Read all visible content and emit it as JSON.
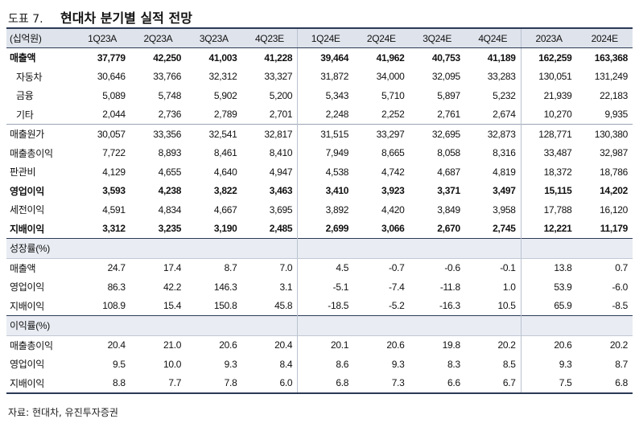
{
  "title": {
    "figure_no": "도표 7.",
    "text": "현대차 분기별 실적 전망"
  },
  "header": [
    "(십억원)",
    "1Q23A",
    "2Q23A",
    "3Q23A",
    "4Q23E",
    "1Q24E",
    "2Q24E",
    "3Q24E",
    "4Q24E",
    "2023A",
    "2024E"
  ],
  "rows": [
    [
      "매출액",
      "37,779",
      "42,250",
      "41,003",
      "41,228",
      "39,464",
      "41,962",
      "40,753",
      "41,189",
      "162,259",
      "163,368"
    ],
    [
      "자동차",
      "30,646",
      "33,766",
      "32,312",
      "33,327",
      "31,872",
      "34,000",
      "32,095",
      "33,283",
      "130,051",
      "131,249"
    ],
    [
      "금융",
      "5,089",
      "5,748",
      "5,902",
      "5,200",
      "5,343",
      "5,710",
      "5,897",
      "5,232",
      "21,939",
      "22,183"
    ],
    [
      "기타",
      "2,044",
      "2,736",
      "2,789",
      "2,701",
      "2,248",
      "2,252",
      "2,761",
      "2,674",
      "10,270",
      "9,935"
    ],
    [
      "매출원가",
      "30,057",
      "33,356",
      "32,541",
      "32,817",
      "31,515",
      "33,297",
      "32,695",
      "32,873",
      "128,771",
      "130,380"
    ],
    [
      "매출총이익",
      "7,722",
      "8,893",
      "8,461",
      "8,410",
      "7,949",
      "8,665",
      "8,058",
      "8,316",
      "33,487",
      "32,987"
    ],
    [
      "판관비",
      "4,129",
      "4,655",
      "4,640",
      "4,947",
      "4,538",
      "4,742",
      "4,687",
      "4,819",
      "18,372",
      "18,786"
    ],
    [
      "영업이익",
      "3,593",
      "4,238",
      "3,822",
      "3,463",
      "3,410",
      "3,923",
      "3,371",
      "3,497",
      "15,115",
      "14,202"
    ],
    [
      "세전이익",
      "4,591",
      "4,834",
      "4,667",
      "3,695",
      "3,892",
      "4,420",
      "3,849",
      "3,958",
      "17,788",
      "16,120"
    ],
    [
      "지배이익",
      "3,312",
      "3,235",
      "3,190",
      "2,485",
      "2,699",
      "3,066",
      "2,670",
      "2,745",
      "12,221",
      "11,179"
    ]
  ],
  "growth_section": "성장률(%)",
  "growth_rows": [
    [
      "매출액",
      "24.7",
      "17.4",
      "8.7",
      "7.0",
      "4.5",
      "-0.7",
      "-0.6",
      "-0.1",
      "13.8",
      "0.7"
    ],
    [
      "영업이익",
      "86.3",
      "42.2",
      "146.3",
      "3.1",
      "-5.1",
      "-7.4",
      "-11.8",
      "1.0",
      "53.9",
      "-6.0"
    ],
    [
      "지배이익",
      "108.9",
      "15.4",
      "150.8",
      "45.8",
      "-18.5",
      "-5.2",
      "-16.3",
      "10.5",
      "65.9",
      "-8.5"
    ]
  ],
  "margin_section": "이익률(%)",
  "margin_rows": [
    [
      "매출총이익",
      "20.4",
      "21.0",
      "20.6",
      "20.4",
      "20.1",
      "20.6",
      "19.8",
      "20.2",
      "20.6",
      "20.2"
    ],
    [
      "영업이익",
      "9.5",
      "10.0",
      "9.3",
      "8.4",
      "8.6",
      "9.3",
      "8.3",
      "8.5",
      "9.3",
      "8.7"
    ],
    [
      "지배이익",
      "8.8",
      "7.7",
      "7.8",
      "6.0",
      "6.8",
      "7.3",
      "6.6",
      "6.7",
      "7.5",
      "6.8"
    ]
  ],
  "source": "자료: 현대차, 유진투자증권"
}
